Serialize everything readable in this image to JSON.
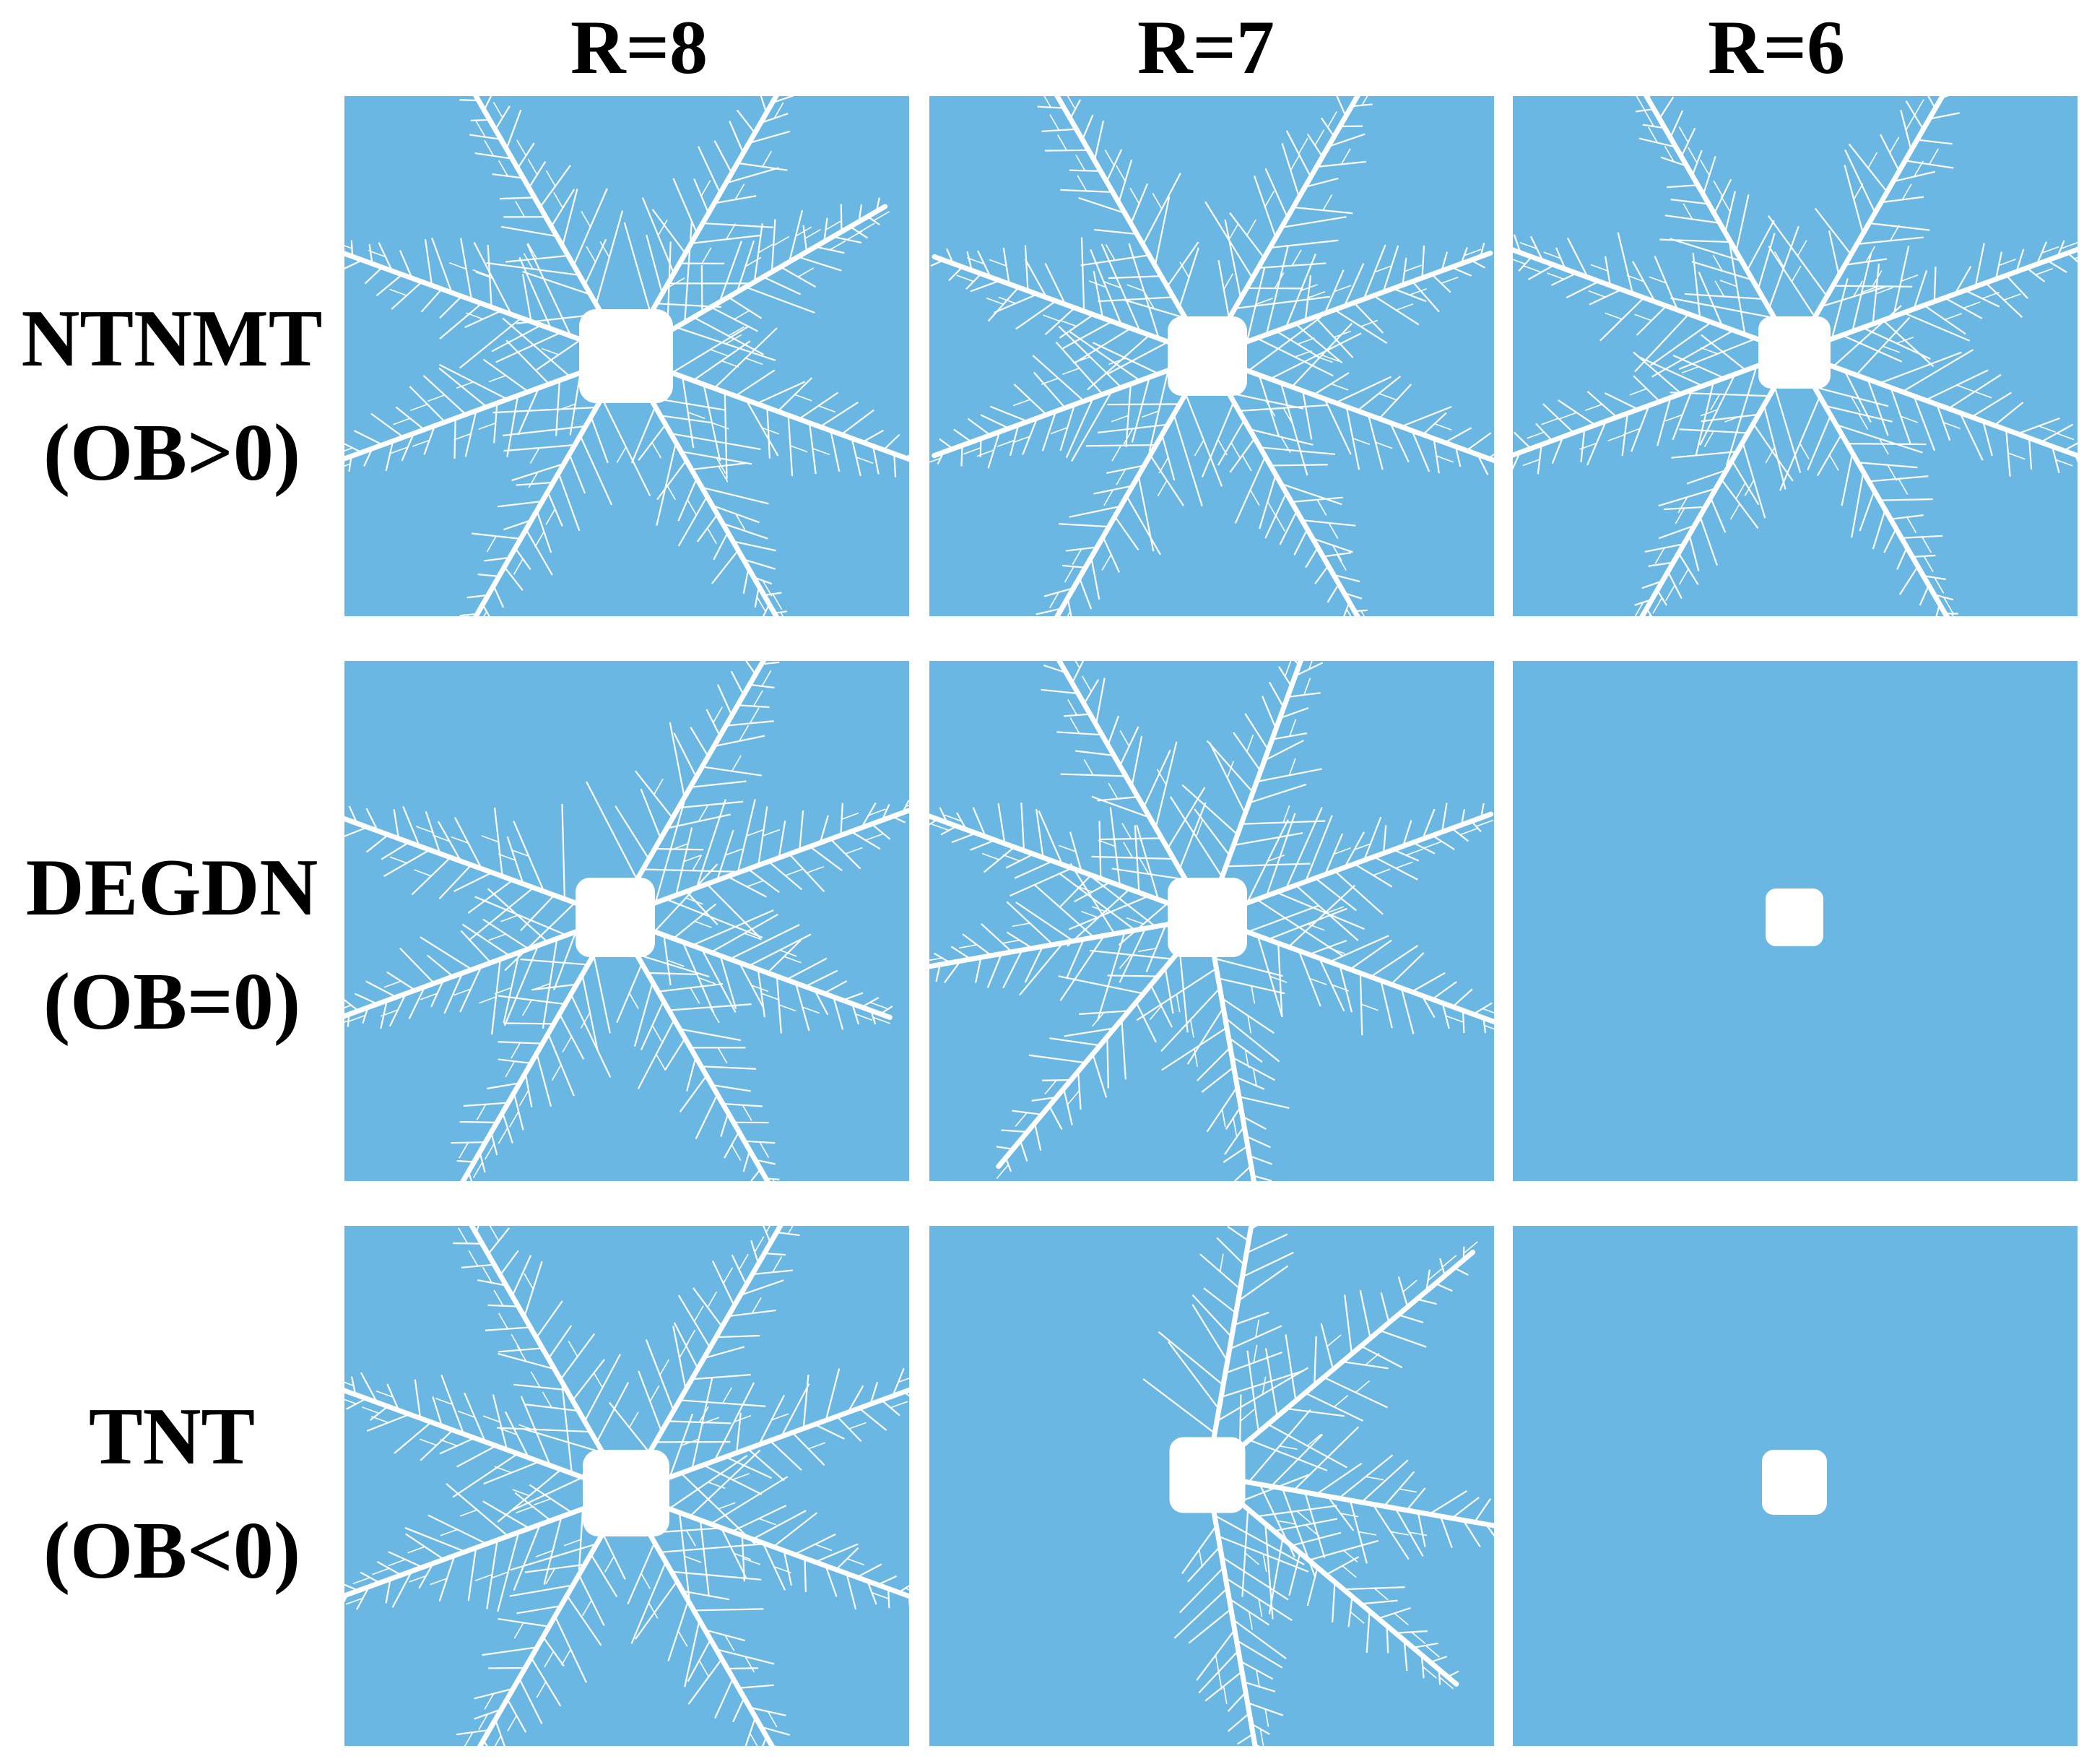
{
  "columns": [
    "R=8",
    "R=7",
    "R=6"
  ],
  "rows": [
    {
      "name": "NTNMT",
      "condition": "(OB>0)"
    },
    {
      "name": "DEGDN",
      "condition": "(OB=0)"
    },
    {
      "name": "TNT",
      "condition": "(OB<0)"
    }
  ],
  "colors": {
    "background": "#6bb7e3",
    "pattern": "#ffffff"
  },
  "panels": [
    {
      "row": 0,
      "col": 0,
      "arms": [
        -60,
        -30,
        20,
        60,
        120,
        160,
        200,
        240
      ]
    },
    {
      "row": 0,
      "col": 1,
      "arms": [
        -60,
        -20,
        20,
        60,
        120,
        160,
        200,
        240
      ]
    },
    {
      "row": 0,
      "col": 2,
      "arms": [
        -60,
        -20,
        20,
        60,
        120,
        160,
        200,
        240
      ]
    },
    {
      "row": 1,
      "col": 0,
      "arms": [
        -60,
        -20,
        20,
        60,
        120,
        160,
        200
      ]
    },
    {
      "row": 1,
      "col": 1,
      "arms": [
        -120,
        -70,
        -20,
        20,
        80,
        130,
        170,
        200
      ]
    },
    {
      "row": 1,
      "col": 2,
      "arms": []
    },
    {
      "row": 2,
      "col": 0,
      "arms": [
        -60,
        -20,
        20,
        60,
        120,
        160,
        200,
        240
      ]
    },
    {
      "row": 2,
      "col": 1,
      "arms": [
        -80,
        -40,
        10,
        40,
        80
      ]
    },
    {
      "row": 2,
      "col": 2,
      "arms": []
    }
  ]
}
